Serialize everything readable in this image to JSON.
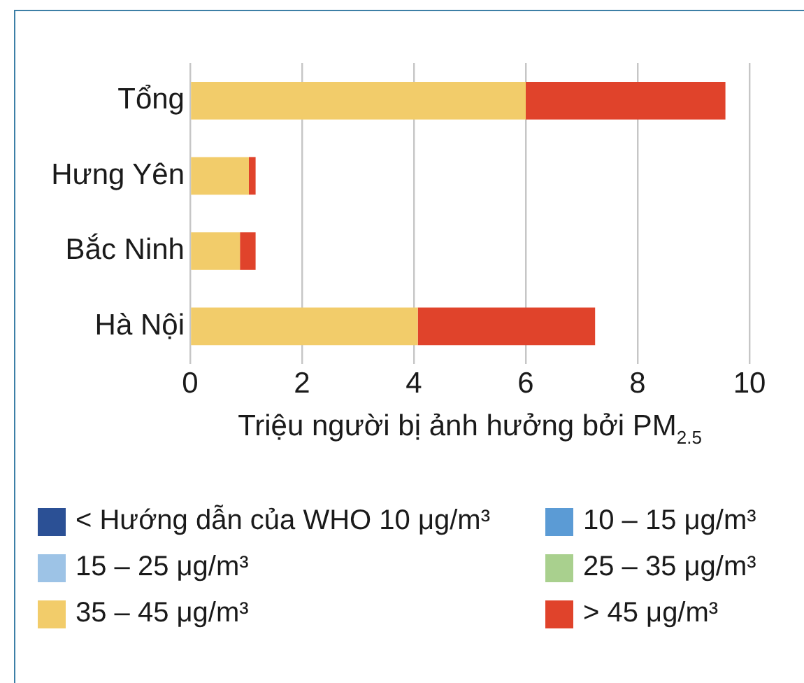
{
  "chart_data": {
    "type": "bar",
    "orientation": "horizontal",
    "stacked": true,
    "categories": [
      "Tổng",
      "Hưng Yên",
      "Bắc Ninh",
      "Hà Nội"
    ],
    "xlabel": "Triệu người bị ảnh hưởng bởi PM$_{2.5}$",
    "xlim": [
      0,
      10
    ],
    "xticks": [
      0,
      2,
      4,
      6,
      8,
      10
    ],
    "grid": "x",
    "legend": "bottom",
    "series": [
      {
        "name": "< Hướng dẫn của WHO 10 μg/m³",
        "color": "#2b5095",
        "values": [
          0,
          0,
          0,
          0
        ]
      },
      {
        "name": "10 – 15 μg/m³",
        "color": "#5b9bd5",
        "values": [
          0,
          0,
          0,
          0
        ]
      },
      {
        "name": "15 – 25 μg/m³",
        "color": "#9dc3e6",
        "values": [
          0,
          0,
          0,
          0
        ]
      },
      {
        "name": "25 – 35 μg/m³",
        "color": "#a9d08e",
        "values": [
          0,
          0,
          0,
          0
        ]
      },
      {
        "name": "35 – 45 μg/m³",
        "color": "#f2cc6a",
        "values": [
          6.0,
          1.05,
          0.89,
          4.07
        ]
      },
      {
        "name": "> 45 μg/m³",
        "color": "#e0432b",
        "values": [
          3.57,
          0.12,
          0.28,
          3.17
        ]
      }
    ]
  }
}
